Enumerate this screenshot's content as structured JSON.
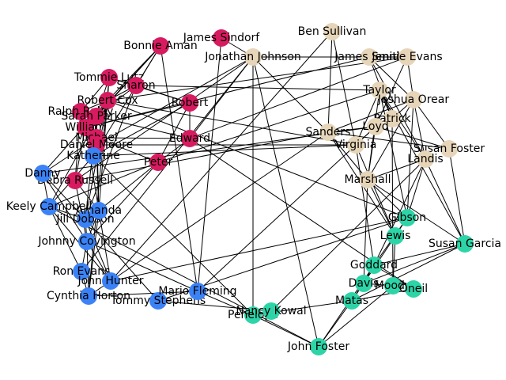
{
  "colors": {
    "red": "#d81b60",
    "tan": "#e6d5b8",
    "blue": "#3b82f6",
    "green": "#2dd4a7"
  },
  "nodes": [
    {
      "id": "n1",
      "label": "James Sindorf",
      "group": "red"
    },
    {
      "id": "n2",
      "label": "Bonnie Aman",
      "group": "red"
    },
    {
      "id": "n3",
      "label": "Tommie Lutz",
      "group": "red"
    },
    {
      "id": "n4",
      "label": "Sharon",
      "group": "red"
    },
    {
      "id": "n5",
      "label": "Robert Cox",
      "group": "red"
    },
    {
      "id": "n6",
      "label": "Ralph Raley",
      "group": "red"
    },
    {
      "id": "n7",
      "label": "Sarah Parker",
      "group": "red"
    },
    {
      "id": "n8",
      "label": "William",
      "group": "red"
    },
    {
      "id": "n9",
      "label": "Michael",
      "group": "red"
    },
    {
      "id": "n10",
      "label": "Daniel Moore",
      "group": "red"
    },
    {
      "id": "n11",
      "label": "Robert",
      "group": "red"
    },
    {
      "id": "n12",
      "label": "Edward",
      "group": "red"
    },
    {
      "id": "n13",
      "label": "Debra Russell",
      "group": "red"
    },
    {
      "id": "n14",
      "label": "Peter",
      "group": "red"
    },
    {
      "id": "n20",
      "label": "Ben Sullivan",
      "group": "tan"
    },
    {
      "id": "n21",
      "label": "Jonathan Johnson",
      "group": "tan"
    },
    {
      "id": "n22",
      "label": "James Smith",
      "group": "tan"
    },
    {
      "id": "n23",
      "label": "Jennie Evans",
      "group": "tan"
    },
    {
      "id": "n24",
      "label": "Taylor",
      "group": "tan"
    },
    {
      "id": "n25",
      "label": "Joshua Orear",
      "group": "tan"
    },
    {
      "id": "n26",
      "label": "Patrick",
      "group": "tan"
    },
    {
      "id": "n27",
      "label": "Loyd",
      "group": "tan"
    },
    {
      "id": "n28",
      "label": "Susan Foster",
      "group": "tan"
    },
    {
      "id": "n29",
      "label": "Landis",
      "group": "tan"
    },
    {
      "id": "n30",
      "label": "Virginia",
      "group": "tan"
    },
    {
      "id": "n31",
      "label": "Marshall",
      "group": "tan"
    },
    {
      "id": "n32",
      "label": "Sanders",
      "group": "tan"
    },
    {
      "id": "n40",
      "label": "Katherine",
      "group": "blue"
    },
    {
      "id": "n41",
      "label": "Danny",
      "group": "blue"
    },
    {
      "id": "n42",
      "label": "Keely Campbell",
      "group": "blue"
    },
    {
      "id": "n43",
      "label": "Jill Dobson",
      "group": "blue"
    },
    {
      "id": "n44",
      "label": "Amanda",
      "group": "blue"
    },
    {
      "id": "n45",
      "label": "Johnny Covington",
      "group": "blue"
    },
    {
      "id": "n46",
      "label": "Ron Evans",
      "group": "blue"
    },
    {
      "id": "n47",
      "label": "John Hunter",
      "group": "blue"
    },
    {
      "id": "n48",
      "label": "Cynthia Horton",
      "group": "blue"
    },
    {
      "id": "n49",
      "label": "Tommy Stephens",
      "group": "blue"
    },
    {
      "id": "n50",
      "label": "Mario Fleming",
      "group": "blue"
    },
    {
      "id": "n60",
      "label": "Gibson",
      "group": "green"
    },
    {
      "id": "n61",
      "label": "Lewis",
      "group": "green"
    },
    {
      "id": "n62",
      "label": "Susan Garcia",
      "group": "green"
    },
    {
      "id": "n63",
      "label": "Goddard",
      "group": "green"
    },
    {
      "id": "n64",
      "label": "Davis",
      "group": "green"
    },
    {
      "id": "n65",
      "label": "Moody",
      "group": "green"
    },
    {
      "id": "n66",
      "label": "Oneil",
      "group": "green"
    },
    {
      "id": "n67",
      "label": "Matas",
      "group": "green"
    },
    {
      "id": "n68",
      "label": "Penelope",
      "group": "green"
    },
    {
      "id": "n69",
      "label": "Nancy Kowal",
      "group": "green"
    },
    {
      "id": "n70",
      "label": "John Foster",
      "group": "green"
    }
  ]
}
